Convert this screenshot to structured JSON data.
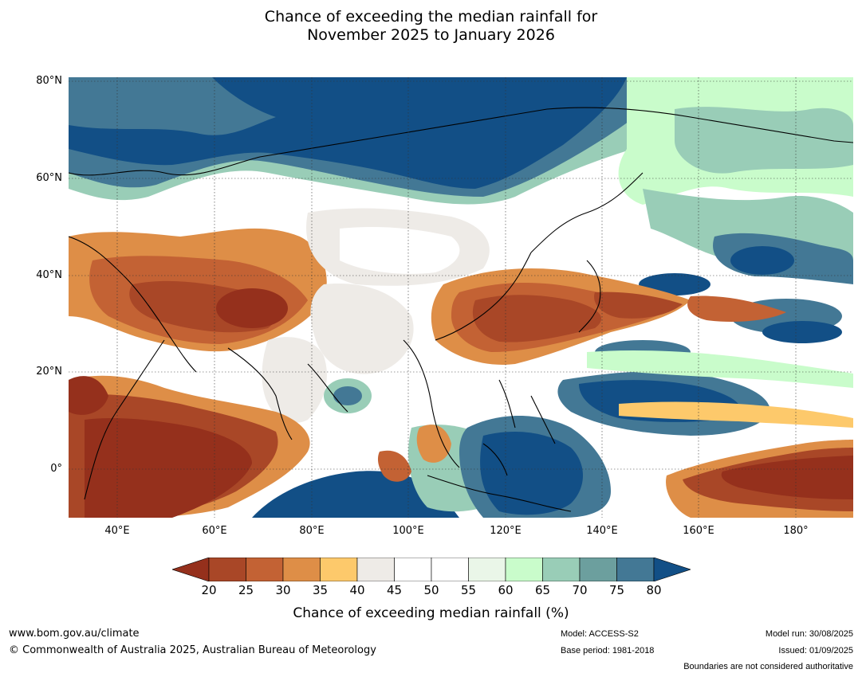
{
  "title": {
    "line1": "Chance of exceeding the median rainfall for",
    "line2": "November 2025 to January 2026"
  },
  "map": {
    "lat_labels": [
      "80°N",
      "60°N",
      "40°N",
      "20°N",
      "0°"
    ],
    "lon_labels": [
      "40°E",
      "60°E",
      "80°E",
      "100°E",
      "120°E",
      "140°E",
      "160°E",
      "180°"
    ]
  },
  "legend": {
    "ticks": [
      "20",
      "25",
      "30",
      "35",
      "40",
      "45",
      "50",
      "55",
      "60",
      "65",
      "70",
      "75",
      "80"
    ],
    "colors": [
      "#95301c",
      "#a94727",
      "#c36234",
      "#de8e47",
      "#fdc96b",
      "#eeebe7",
      "#ffffff",
      "#ffffff",
      "#eaf6e8",
      "#c9fccb",
      "#99cdb7",
      "#6c9f9e",
      "#437895",
      "#124f86"
    ],
    "label": "Chance of exceeding median rainfall (%)"
  },
  "footer": {
    "url": "www.bom.gov.au/climate",
    "copyright": "© Commonwealth of Australia 2025, Australian Bureau of Meteorology",
    "model": "Model: ACCESS-S2",
    "base_period": "Base period: 1981-2018",
    "model_run": "Model run: 30/08/2025",
    "issued": "Issued: 01/09/2025",
    "disclaimer": "Boundaries are not considered authoritative"
  }
}
